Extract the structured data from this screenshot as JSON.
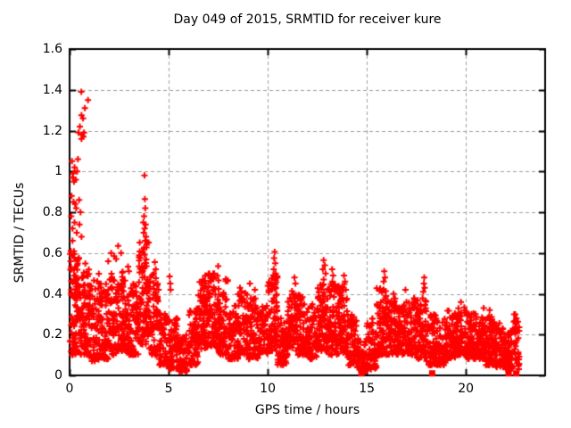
{
  "chart_data": {
    "type": "scatter",
    "title": "Day 049 of 2015, SRMTID for receiver kure",
    "xlabel": "GPS time / hours",
    "ylabel": "SRMTID / TECUs",
    "xlim": [
      0,
      24
    ],
    "ylim": [
      0,
      1.6
    ],
    "xticks": [
      0,
      5,
      10,
      15,
      20
    ],
    "yticks": [
      0,
      0.2,
      0.4,
      0.6,
      0.8,
      1,
      1.2,
      1.4,
      1.6
    ],
    "grid": true,
    "grid_style": "dashed",
    "legend": "none",
    "marker": "plus",
    "marker_size_px": 7,
    "colors": {
      "points": "#ff0000",
      "grid": "#a0a0a0",
      "axis": "#000000",
      "background": "#ffffff"
    },
    "seed": 20150049,
    "high_points": [
      [
        0.59,
        1.39
      ],
      [
        0.77,
        1.31
      ],
      [
        0.93,
        1.35
      ],
      [
        0.6,
        1.275
      ],
      [
        0.68,
        1.26
      ],
      [
        0.45,
        1.19
      ],
      [
        0.52,
        1.22
      ],
      [
        0.62,
        1.18
      ],
      [
        0.73,
        1.19
      ],
      [
        0.6,
        1.16
      ],
      [
        0.7,
        1.17
      ],
      [
        0.12,
        1.05
      ],
      [
        0.18,
        0.99
      ],
      [
        0.25,
        1.02
      ],
      [
        0.31,
        0.96
      ],
      [
        0.38,
        1.0
      ],
      [
        0.22,
        0.95
      ],
      [
        0.15,
        0.97
      ],
      [
        0.42,
        1.06
      ],
      [
        0.1,
        0.88
      ],
      [
        0.2,
        0.85
      ],
      [
        0.33,
        0.82
      ],
      [
        0.48,
        0.86
      ],
      [
        0.55,
        0.8
      ],
      [
        0.28,
        0.84
      ],
      [
        0.08,
        0.78
      ],
      [
        0.15,
        0.72
      ],
      [
        0.25,
        0.75
      ],
      [
        0.36,
        0.7
      ],
      [
        0.5,
        0.74
      ],
      [
        0.6,
        0.68
      ],
      [
        0.15,
        0.66
      ],
      [
        3.78,
        0.98
      ],
      [
        3.8,
        0.865
      ],
      [
        3.82,
        0.82
      ],
      [
        3.76,
        0.78
      ],
      [
        3.72,
        0.75
      ],
      [
        3.84,
        0.74
      ],
      [
        3.79,
        0.72
      ],
      [
        3.74,
        0.7
      ],
      [
        3.86,
        0.68
      ],
      [
        3.81,
        0.66
      ],
      [
        2.1,
        0.6
      ],
      [
        2.25,
        0.585
      ],
      [
        1.95,
        0.56
      ],
      [
        2.35,
        0.57
      ],
      [
        2.45,
        0.635
      ],
      [
        2.6,
        0.6
      ],
      [
        10.35,
        0.605
      ],
      [
        10.32,
        0.575
      ],
      [
        10.38,
        0.55
      ],
      [
        10.3,
        0.52
      ],
      [
        10.4,
        0.5
      ],
      [
        12.82,
        0.565
      ],
      [
        12.88,
        0.54
      ],
      [
        12.78,
        0.52
      ],
      [
        12.92,
        0.5
      ],
      [
        15.88,
        0.51
      ],
      [
        15.92,
        0.48
      ],
      [
        15.85,
        0.46
      ],
      [
        7.5,
        0.535
      ],
      [
        7.05,
        0.5
      ],
      [
        7.3,
        0.5
      ],
      [
        6.85,
        0.49
      ],
      [
        17.9,
        0.48
      ],
      [
        17.88,
        0.45
      ],
      [
        17.92,
        0.43
      ],
      [
        17.85,
        0.41
      ],
      [
        13.25,
        0.52
      ],
      [
        13.3,
        0.49
      ],
      [
        13.85,
        0.49
      ],
      [
        13.9,
        0.46
      ],
      [
        5.05,
        0.485
      ],
      [
        5.08,
        0.45
      ],
      [
        5.1,
        0.42
      ],
      [
        11.35,
        0.48
      ],
      [
        11.4,
        0.45
      ],
      [
        9.1,
        0.45
      ],
      [
        8.6,
        0.43
      ],
      [
        9.35,
        0.42
      ],
      [
        4.3,
        0.555
      ],
      [
        4.35,
        0.52
      ],
      [
        4.25,
        0.5
      ],
      [
        16.35,
        0.4
      ],
      [
        16.95,
        0.42
      ],
      [
        19.75,
        0.36
      ],
      [
        20.9,
        0.33
      ],
      [
        21.2,
        0.32
      ],
      [
        22.55,
        0.28
      ]
    ],
    "zero_flag_squares": [
      [
        14.73,
        0.01
      ],
      [
        18.3,
        0.01
      ],
      [
        22.16,
        0.01
      ],
      [
        22.54,
        0.01
      ]
    ],
    "density_bands_format": "x_start, x_end, count, y_min, y_max, skew_exponent",
    "density_bands": [
      [
        0.0,
        0.5,
        95,
        0.1,
        0.62,
        1.3
      ],
      [
        0.5,
        1.0,
        85,
        0.1,
        0.55,
        1.4
      ],
      [
        1.0,
        1.5,
        70,
        0.07,
        0.5,
        1.5
      ],
      [
        1.5,
        2.0,
        75,
        0.08,
        0.45,
        1.5
      ],
      [
        2.0,
        2.5,
        75,
        0.1,
        0.5,
        1.5
      ],
      [
        2.5,
        3.0,
        80,
        0.12,
        0.55,
        1.5
      ],
      [
        3.0,
        3.5,
        70,
        0.1,
        0.45,
        1.5
      ],
      [
        3.5,
        4.0,
        90,
        0.15,
        0.66,
        1.2
      ],
      [
        4.0,
        4.5,
        72,
        0.1,
        0.5,
        1.5
      ],
      [
        4.5,
        5.0,
        60,
        0.05,
        0.32,
        1.5
      ],
      [
        5.0,
        5.5,
        65,
        0.03,
        0.28,
        1.6
      ],
      [
        5.5,
        6.0,
        70,
        0.02,
        0.2,
        1.5
      ],
      [
        6.0,
        6.5,
        70,
        0.05,
        0.33,
        1.5
      ],
      [
        6.5,
        7.0,
        80,
        0.13,
        0.47,
        1.3
      ],
      [
        7.0,
        7.5,
        80,
        0.14,
        0.5,
        1.3
      ],
      [
        7.5,
        8.0,
        75,
        0.1,
        0.48,
        1.4
      ],
      [
        8.0,
        8.5,
        70,
        0.08,
        0.35,
        1.5
      ],
      [
        8.5,
        9.0,
        70,
        0.1,
        0.42,
        1.5
      ],
      [
        9.0,
        9.5,
        65,
        0.08,
        0.38,
        1.5
      ],
      [
        9.5,
        10.0,
        65,
        0.1,
        0.35,
        1.5
      ],
      [
        10.0,
        10.5,
        85,
        0.12,
        0.5,
        1.4
      ],
      [
        10.5,
        11.0,
        65,
        0.05,
        0.28,
        1.5
      ],
      [
        11.0,
        11.5,
        75,
        0.12,
        0.42,
        1.4
      ],
      [
        11.5,
        12.0,
        70,
        0.1,
        0.4,
        1.5
      ],
      [
        12.0,
        12.5,
        65,
        0.08,
        0.35,
        1.5
      ],
      [
        12.5,
        13.0,
        80,
        0.12,
        0.47,
        1.4
      ],
      [
        13.0,
        13.5,
        75,
        0.1,
        0.46,
        1.4
      ],
      [
        13.5,
        14.0,
        75,
        0.1,
        0.45,
        1.4
      ],
      [
        14.0,
        14.5,
        65,
        0.05,
        0.3,
        1.5
      ],
      [
        14.5,
        15.0,
        58,
        0.02,
        0.2,
        1.5
      ],
      [
        15.0,
        15.5,
        60,
        0.03,
        0.28,
        1.5
      ],
      [
        15.5,
        16.0,
        75,
        0.1,
        0.43,
        1.4
      ],
      [
        16.0,
        16.5,
        70,
        0.1,
        0.38,
        1.5
      ],
      [
        16.5,
        17.0,
        70,
        0.1,
        0.38,
        1.5
      ],
      [
        17.0,
        17.5,
        70,
        0.1,
        0.38,
        1.5
      ],
      [
        17.5,
        18.0,
        75,
        0.08,
        0.38,
        1.5
      ],
      [
        18.0,
        18.5,
        65,
        0.05,
        0.3,
        1.5
      ],
      [
        18.5,
        19.0,
        60,
        0.05,
        0.28,
        1.5
      ],
      [
        19.0,
        19.5,
        65,
        0.08,
        0.32,
        1.5
      ],
      [
        19.5,
        20.0,
        70,
        0.1,
        0.34,
        1.5
      ],
      [
        20.0,
        20.5,
        70,
        0.08,
        0.32,
        1.5
      ],
      [
        20.5,
        21.0,
        65,
        0.08,
        0.3,
        1.5
      ],
      [
        21.0,
        21.5,
        70,
        0.05,
        0.3,
        1.5
      ],
      [
        21.5,
        22.0,
        70,
        0.04,
        0.26,
        1.5
      ],
      [
        22.0,
        22.4,
        55,
        0.03,
        0.22,
        1.5
      ],
      [
        22.4,
        22.7,
        35,
        0.03,
        0.3,
        1.2
      ]
    ]
  }
}
